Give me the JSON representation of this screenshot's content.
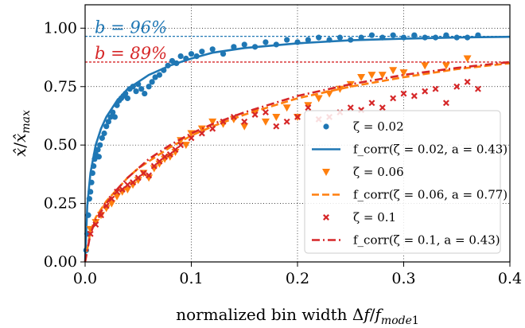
{
  "chart_data": {
    "type": "scatter",
    "xlabel": "normalized bin width Δf/f_mode1",
    "ylabel": "x̂/x̂_max",
    "xlim": [
      0.0,
      0.4
    ],
    "ylim": [
      0.0,
      1.1
    ],
    "x_ticks": [
      0.0,
      0.1,
      0.2,
      0.3,
      0.4
    ],
    "x_tick_labels": [
      "0.0",
      "0.1",
      "0.2",
      "0.3",
      "0.4"
    ],
    "y_ticks": [
      0.0,
      0.25,
      0.5,
      0.75,
      1.0
    ],
    "y_tick_labels": [
      "0.00",
      "0.25",
      "0.50",
      "0.75",
      "1.00"
    ],
    "grid": "dotted",
    "legend_position": "lower-right",
    "annotations": [
      {
        "text": "b = 96%",
        "y": 0.965,
        "color": "#1f77b4"
      },
      {
        "text": "b = 89%",
        "y": 0.855,
        "color": "#d62728"
      }
    ],
    "series": [
      {
        "name": "ζ = 0.02",
        "kind": "scatter",
        "marker": "circle",
        "color": "#1f77b4",
        "points": [
          [
            0.001,
            0.05
          ],
          [
            0.002,
            0.12
          ],
          [
            0.003,
            0.2
          ],
          [
            0.004,
            0.27
          ],
          [
            0.005,
            0.3
          ],
          [
            0.006,
            0.34
          ],
          [
            0.007,
            0.38
          ],
          [
            0.008,
            0.41
          ],
          [
            0.009,
            0.44
          ],
          [
            0.01,
            0.46
          ],
          [
            0.012,
            0.48
          ],
          [
            0.013,
            0.45
          ],
          [
            0.014,
            0.5
          ],
          [
            0.016,
            0.53
          ],
          [
            0.018,
            0.55
          ],
          [
            0.02,
            0.58
          ],
          [
            0.022,
            0.6
          ],
          [
            0.024,
            0.62
          ],
          [
            0.026,
            0.64
          ],
          [
            0.028,
            0.62
          ],
          [
            0.03,
            0.67
          ],
          [
            0.032,
            0.69
          ],
          [
            0.034,
            0.7
          ],
          [
            0.036,
            0.71
          ],
          [
            0.038,
            0.72
          ],
          [
            0.04,
            0.7
          ],
          [
            0.042,
            0.74
          ],
          [
            0.045,
            0.75
          ],
          [
            0.048,
            0.73
          ],
          [
            0.05,
            0.76
          ],
          [
            0.053,
            0.74
          ],
          [
            0.056,
            0.72
          ],
          [
            0.06,
            0.75
          ],
          [
            0.063,
            0.77
          ],
          [
            0.066,
            0.79
          ],
          [
            0.07,
            0.8
          ],
          [
            0.074,
            0.82
          ],
          [
            0.078,
            0.84
          ],
          [
            0.082,
            0.86
          ],
          [
            0.086,
            0.85
          ],
          [
            0.09,
            0.88
          ],
          [
            0.095,
            0.87
          ],
          [
            0.1,
            0.89
          ],
          [
            0.105,
            0.88
          ],
          [
            0.11,
            0.9
          ],
          [
            0.12,
            0.91
          ],
          [
            0.13,
            0.89
          ],
          [
            0.14,
            0.92
          ],
          [
            0.15,
            0.93
          ],
          [
            0.16,
            0.92
          ],
          [
            0.17,
            0.94
          ],
          [
            0.18,
            0.93
          ],
          [
            0.19,
            0.95
          ],
          [
            0.2,
            0.94
          ],
          [
            0.21,
            0.95
          ],
          [
            0.22,
            0.96
          ],
          [
            0.23,
            0.95
          ],
          [
            0.24,
            0.96
          ],
          [
            0.25,
            0.95
          ],
          [
            0.26,
            0.96
          ],
          [
            0.27,
            0.97
          ],
          [
            0.28,
            0.96
          ],
          [
            0.29,
            0.97
          ],
          [
            0.3,
            0.96
          ],
          [
            0.31,
            0.97
          ],
          [
            0.32,
            0.96
          ],
          [
            0.33,
            0.96
          ],
          [
            0.34,
            0.97
          ],
          [
            0.35,
            0.96
          ],
          [
            0.36,
            0.96
          ],
          [
            0.37,
            0.97
          ]
        ]
      },
      {
        "name": "f_corr(ζ = 0.02, a = 0.43)",
        "kind": "line",
        "dash": "solid",
        "color": "#1f77b4",
        "points": [
          [
            0.0,
            0.0
          ],
          [
            0.002,
            0.24
          ],
          [
            0.005,
            0.38
          ],
          [
            0.01,
            0.5
          ],
          [
            0.015,
            0.57
          ],
          [
            0.02,
            0.62
          ],
          [
            0.03,
            0.69
          ],
          [
            0.04,
            0.74
          ],
          [
            0.05,
            0.77
          ],
          [
            0.06,
            0.8
          ],
          [
            0.08,
            0.84
          ],
          [
            0.1,
            0.87
          ],
          [
            0.12,
            0.895
          ],
          [
            0.15,
            0.915
          ],
          [
            0.2,
            0.935
          ],
          [
            0.25,
            0.948
          ],
          [
            0.3,
            0.955
          ],
          [
            0.35,
            0.96
          ],
          [
            0.4,
            0.963
          ]
        ]
      },
      {
        "name": "ζ = 0.06",
        "kind": "scatter",
        "marker": "triangle-down",
        "color": "#ff7f0e",
        "points": [
          [
            0.005,
            0.14
          ],
          [
            0.01,
            0.17
          ],
          [
            0.015,
            0.2
          ],
          [
            0.02,
            0.23
          ],
          [
            0.025,
            0.25
          ],
          [
            0.03,
            0.28
          ],
          [
            0.035,
            0.3
          ],
          [
            0.04,
            0.31
          ],
          [
            0.045,
            0.33
          ],
          [
            0.05,
            0.35
          ],
          [
            0.055,
            0.38
          ],
          [
            0.06,
            0.36
          ],
          [
            0.065,
            0.4
          ],
          [
            0.07,
            0.42
          ],
          [
            0.075,
            0.44
          ],
          [
            0.08,
            0.45
          ],
          [
            0.085,
            0.47
          ],
          [
            0.09,
            0.52
          ],
          [
            0.095,
            0.5
          ],
          [
            0.1,
            0.55
          ],
          [
            0.11,
            0.57
          ],
          [
            0.12,
            0.6
          ],
          [
            0.13,
            0.59
          ],
          [
            0.14,
            0.61
          ],
          [
            0.15,
            0.58
          ],
          [
            0.16,
            0.64
          ],
          [
            0.17,
            0.6
          ],
          [
            0.18,
            0.62
          ],
          [
            0.19,
            0.66
          ],
          [
            0.2,
            0.62
          ],
          [
            0.21,
            0.67
          ],
          [
            0.22,
            0.7
          ],
          [
            0.23,
            0.72
          ],
          [
            0.24,
            0.74
          ],
          [
            0.25,
            0.76
          ],
          [
            0.26,
            0.79
          ],
          [
            0.27,
            0.8
          ],
          [
            0.28,
            0.8
          ],
          [
            0.29,
            0.82
          ],
          [
            0.3,
            0.81
          ],
          [
            0.32,
            0.84
          ],
          [
            0.34,
            0.84
          ],
          [
            0.36,
            0.87
          ]
        ]
      },
      {
        "name": "f_corr(ζ = 0.06, a = 0.77)",
        "kind": "line",
        "dash": "dashed",
        "color": "#ff7f0e",
        "points": [
          [
            0.0,
            0.0
          ],
          [
            0.005,
            0.13
          ],
          [
            0.01,
            0.19
          ],
          [
            0.02,
            0.26
          ],
          [
            0.03,
            0.31
          ],
          [
            0.04,
            0.36
          ],
          [
            0.05,
            0.4
          ],
          [
            0.06,
            0.43
          ],
          [
            0.08,
            0.49
          ],
          [
            0.1,
            0.54
          ],
          [
            0.12,
            0.58
          ],
          [
            0.15,
            0.63
          ],
          [
            0.2,
            0.7
          ],
          [
            0.25,
            0.75
          ],
          [
            0.3,
            0.79
          ],
          [
            0.35,
            0.825
          ],
          [
            0.4,
            0.85
          ]
        ]
      },
      {
        "name": "ζ = 0.1",
        "kind": "scatter",
        "marker": "x",
        "color": "#d62728",
        "points": [
          [
            0.005,
            0.12
          ],
          [
            0.01,
            0.16
          ],
          [
            0.015,
            0.2
          ],
          [
            0.02,
            0.24
          ],
          [
            0.025,
            0.27
          ],
          [
            0.03,
            0.3
          ],
          [
            0.035,
            0.31
          ],
          [
            0.04,
            0.33
          ],
          [
            0.045,
            0.34
          ],
          [
            0.05,
            0.36
          ],
          [
            0.055,
            0.38
          ],
          [
            0.06,
            0.37
          ],
          [
            0.065,
            0.41
          ],
          [
            0.07,
            0.43
          ],
          [
            0.075,
            0.45
          ],
          [
            0.08,
            0.46
          ],
          [
            0.085,
            0.48
          ],
          [
            0.09,
            0.5
          ],
          [
            0.1,
            0.53
          ],
          [
            0.11,
            0.55
          ],
          [
            0.12,
            0.57
          ],
          [
            0.13,
            0.6
          ],
          [
            0.14,
            0.62
          ],
          [
            0.15,
            0.6
          ],
          [
            0.16,
            0.63
          ],
          [
            0.17,
            0.64
          ],
          [
            0.18,
            0.58
          ],
          [
            0.19,
            0.6
          ],
          [
            0.2,
            0.62
          ],
          [
            0.21,
            0.66
          ],
          [
            0.22,
            0.61
          ],
          [
            0.23,
            0.62
          ],
          [
            0.24,
            0.64
          ],
          [
            0.25,
            0.66
          ],
          [
            0.26,
            0.65
          ],
          [
            0.27,
            0.68
          ],
          [
            0.28,
            0.66
          ],
          [
            0.29,
            0.7
          ],
          [
            0.3,
            0.72
          ],
          [
            0.31,
            0.71
          ],
          [
            0.32,
            0.73
          ],
          [
            0.33,
            0.74
          ],
          [
            0.34,
            0.68
          ],
          [
            0.35,
            0.75
          ],
          [
            0.36,
            0.77
          ],
          [
            0.37,
            0.74
          ]
        ]
      },
      {
        "name": "f_corr(ζ = 0.1, a = 0.43)",
        "kind": "line",
        "dash": "dashdot",
        "color": "#d62728",
        "points": [
          [
            0.0,
            0.0
          ],
          [
            0.005,
            0.12
          ],
          [
            0.01,
            0.18
          ],
          [
            0.02,
            0.25
          ],
          [
            0.03,
            0.31
          ],
          [
            0.04,
            0.36
          ],
          [
            0.05,
            0.4
          ],
          [
            0.06,
            0.44
          ],
          [
            0.08,
            0.5
          ],
          [
            0.1,
            0.55
          ],
          [
            0.12,
            0.59
          ],
          [
            0.15,
            0.64
          ],
          [
            0.2,
            0.71
          ],
          [
            0.25,
            0.76
          ],
          [
            0.3,
            0.8
          ],
          [
            0.35,
            0.83
          ],
          [
            0.4,
            0.855
          ]
        ]
      }
    ]
  }
}
